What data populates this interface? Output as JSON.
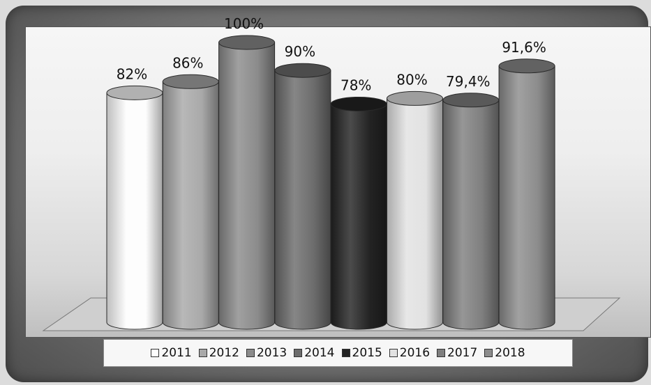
{
  "chart_data": {
    "type": "bar",
    "style": "3d-cylinder",
    "categories": [
      "2011",
      "2012",
      "2013",
      "2014",
      "2015",
      "2016",
      "2017",
      "2018"
    ],
    "values": [
      82,
      86,
      100,
      90,
      78,
      80,
      79.4,
      91.6
    ],
    "data_labels": [
      "82%",
      "86%",
      "100%",
      "90%",
      "78%",
      "80%",
      "79,4%",
      "91,6%"
    ],
    "unit": "%",
    "legend": [
      "2011",
      "2012",
      "2013",
      "2014",
      "2015",
      "2016",
      "2017",
      "2018"
    ],
    "legend_position": "bottom",
    "colors": [
      "#fdfdfd",
      "#a9a9a9",
      "#8b8b8b",
      "#6c6c6c",
      "#232323",
      "#e2e2e2",
      "#7f7f7f",
      "#8c8c8c"
    ],
    "grid": false,
    "ylim": [
      0,
      100
    ]
  }
}
